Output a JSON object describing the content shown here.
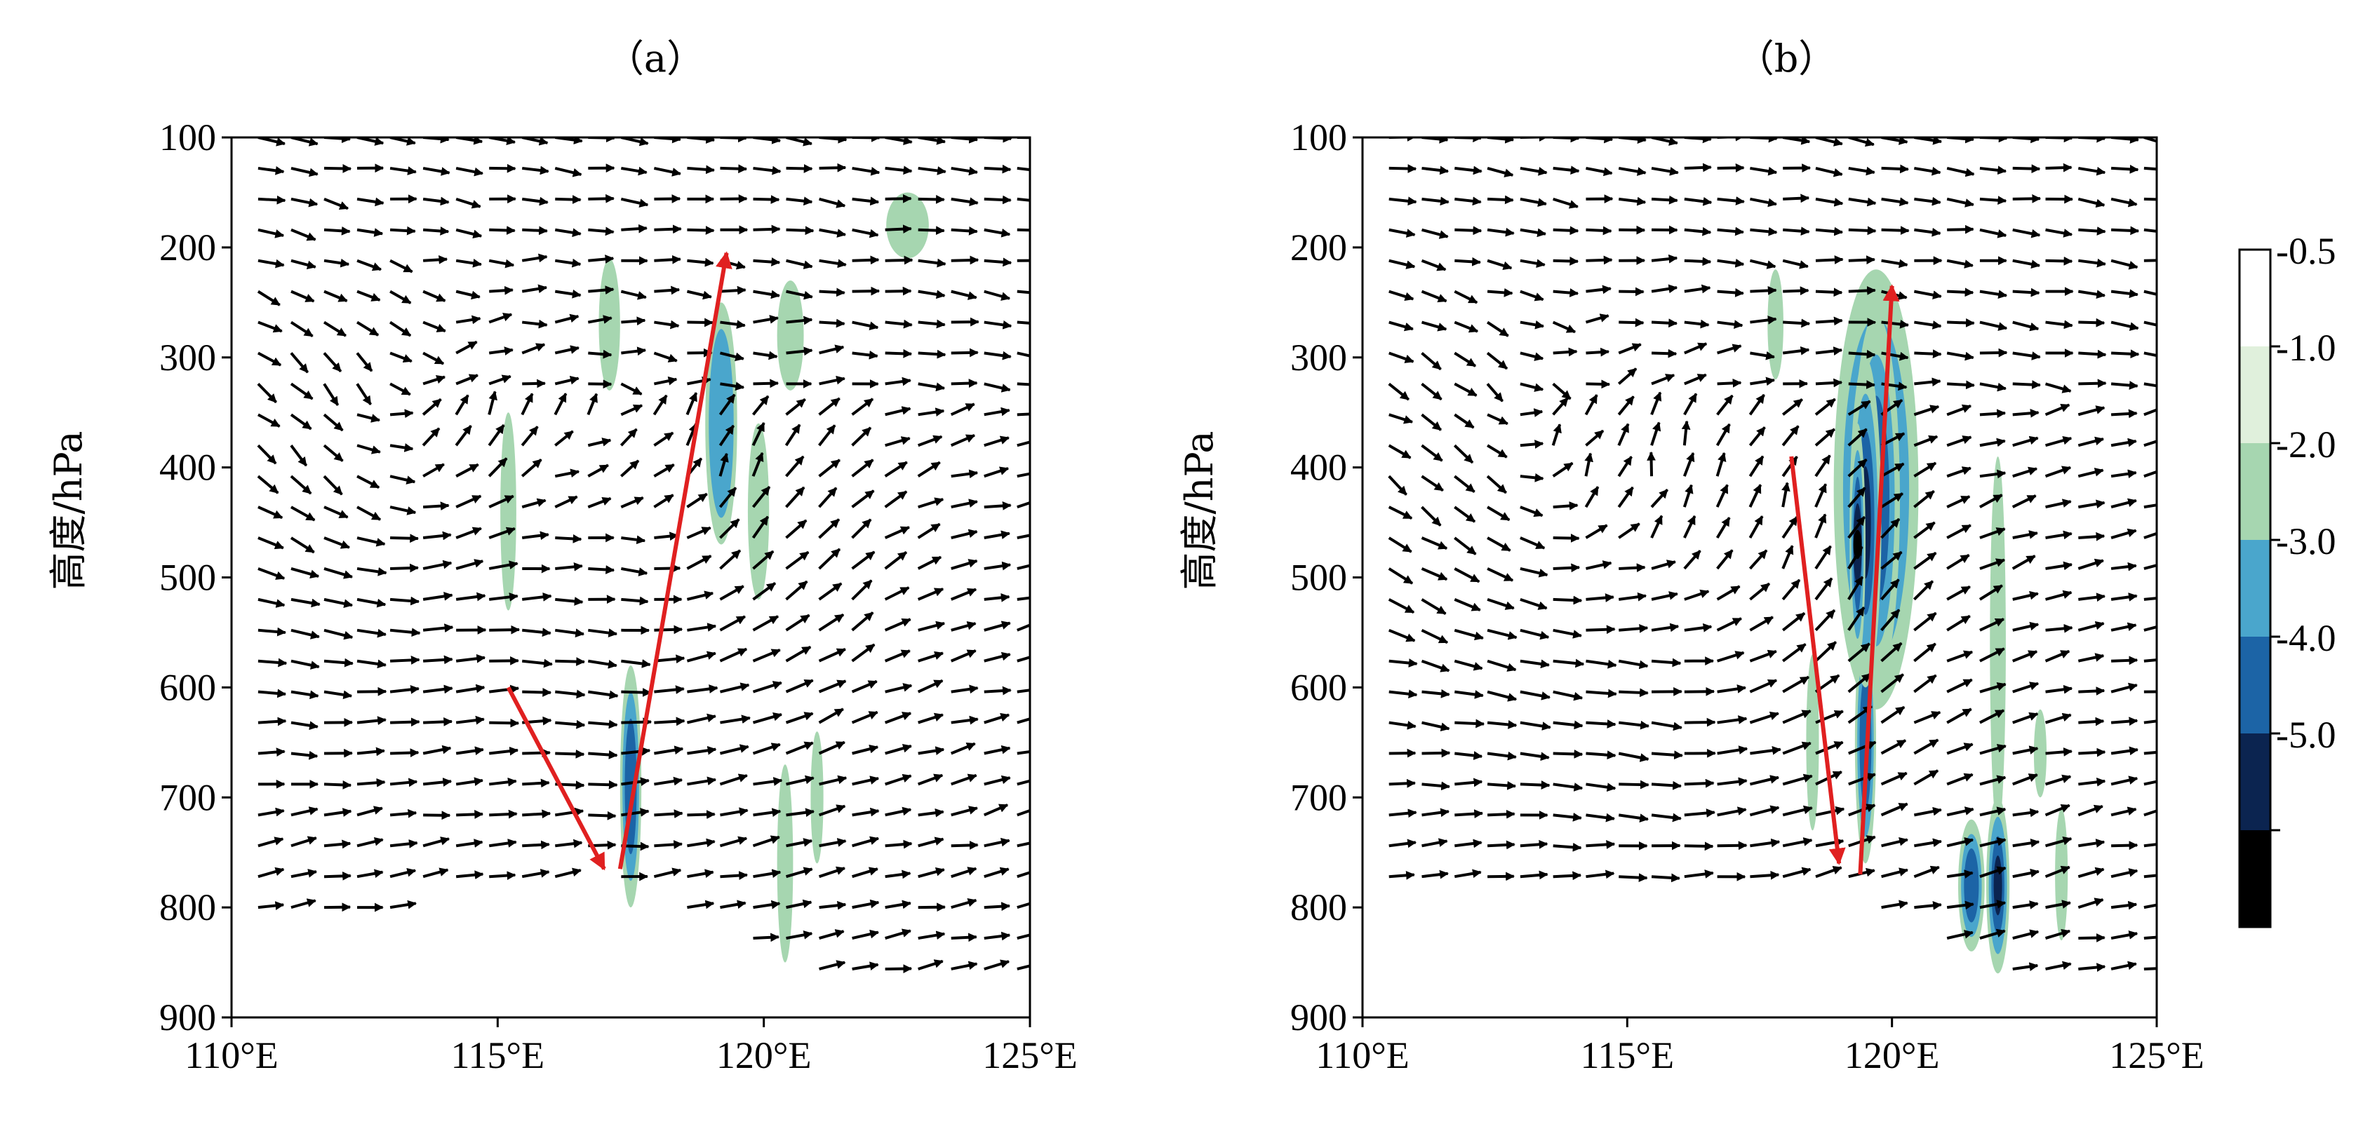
{
  "colors": {
    "level_0_5": "#ffffff",
    "level_1_0": "#e0f0dc",
    "level_2_0": "#a6d6b0",
    "level_3_0": "#4aa6cc",
    "level_4_0": "#1c64a6",
    "level_5_0": "#0b2450",
    "level_min": "#000000",
    "vector": "#000000",
    "highlight_arrow": "#e02020"
  },
  "chart_data": [
    {
      "type": "vector-contour",
      "title": "（a）",
      "ylabel": "高度/hPa",
      "x_ticks": [
        "110°E",
        "115°E",
        "120°E",
        "125°E"
      ],
      "y_ticks": [
        "100",
        "200",
        "300",
        "400",
        "500",
        "600",
        "700",
        "800",
        "900"
      ],
      "xlim": [
        110,
        125
      ],
      "ylim": [
        900,
        100
      ],
      "grid": false,
      "contour_levels": [
        -0.5,
        -1.0,
        -2.0,
        -3.0,
        -4.0,
        -5.0
      ],
      "shaded_areas": [
        {
          "lon": 117.5,
          "p": 690,
          "lon_halfwidth": 0.2,
          "p_halfheight": 110,
          "min_value": -3.0
        },
        {
          "lon": 119.2,
          "p": 360,
          "lon_halfwidth": 0.3,
          "p_halfheight": 110,
          "min_value": -2.0
        },
        {
          "lon": 119.9,
          "p": 440,
          "lon_halfwidth": 0.2,
          "p_halfheight": 80,
          "min_value": -1.0
        },
        {
          "lon": 115.2,
          "p": 440,
          "lon_halfwidth": 0.15,
          "p_halfheight": 90,
          "min_value": -1.0
        },
        {
          "lon": 117.1,
          "p": 270,
          "lon_halfwidth": 0.2,
          "p_halfheight": 60,
          "min_value": -1.0
        },
        {
          "lon": 120.5,
          "p": 280,
          "lon_halfwidth": 0.25,
          "p_halfheight": 50,
          "min_value": -1.0
        },
        {
          "lon": 122.7,
          "p": 180,
          "lon_halfwidth": 0.4,
          "p_halfheight": 30,
          "min_value": -1.0
        },
        {
          "lon": 120.4,
          "p": 760,
          "lon_halfwidth": 0.15,
          "p_halfheight": 90,
          "min_value": -1.0
        },
        {
          "lon": 121.0,
          "p": 700,
          "lon_halfwidth": 0.12,
          "p_halfheight": 60,
          "min_value": -1.0
        }
      ],
      "highlight_arrows": [
        {
          "from": [
            115.2,
            600
          ],
          "to": [
            117.0,
            765
          ]
        },
        {
          "from": [
            117.3,
            765
          ],
          "to": [
            119.3,
            205
          ]
        }
      ],
      "circulation_centers": [
        {
          "lon": 113.2,
          "p": 430
        },
        {
          "lon": 118.3,
          "p": 500
        }
      ],
      "lower_boundary_p": [
        [
          110,
          800
        ],
        [
          113,
          800
        ],
        [
          115,
          780
        ],
        [
          117,
          770
        ],
        [
          118,
          790
        ],
        [
          120,
          840
        ],
        [
          122,
          880
        ],
        [
          125,
          880
        ]
      ]
    },
    {
      "type": "vector-contour",
      "title": "（b）",
      "ylabel": "高度/hPa",
      "x_ticks": [
        "110°E",
        "115°E",
        "120°E",
        "125°E"
      ],
      "y_ticks": [
        "100",
        "200",
        "300",
        "400",
        "500",
        "600",
        "700",
        "800",
        "900"
      ],
      "xlim": [
        110,
        125
      ],
      "ylim": [
        900,
        100
      ],
      "grid": false,
      "contour_levels": [
        -0.5,
        -1.0,
        -2.0,
        -3.0,
        -4.0,
        -5.0
      ],
      "shaded_areas": [
        {
          "lon": 119.7,
          "p": 420,
          "lon_halfwidth": 0.8,
          "p_halfheight": 200,
          "min_value": -2.0
        },
        {
          "lon": 119.7,
          "p": 430,
          "lon_halfwidth": 0.45,
          "p_halfheight": 170,
          "min_value": -3.0
        },
        {
          "lon": 119.5,
          "p": 450,
          "lon_halfwidth": 0.3,
          "p_halfheight": 150,
          "min_value": -4.0
        },
        {
          "lon": 119.35,
          "p": 470,
          "lon_halfwidth": 0.15,
          "p_halfheight": 110,
          "min_value": -5.0
        },
        {
          "lon": 119.5,
          "p": 650,
          "lon_halfwidth": 0.2,
          "p_halfheight": 110,
          "min_value": -3.0
        },
        {
          "lon": 121.5,
          "p": 780,
          "lon_halfwidth": 0.25,
          "p_halfheight": 60,
          "min_value": -3.0
        },
        {
          "lon": 122.0,
          "p": 780,
          "lon_halfwidth": 0.22,
          "p_halfheight": 80,
          "min_value": -4.0
        },
        {
          "lon": 122.0,
          "p": 560,
          "lon_halfwidth": 0.15,
          "p_halfheight": 170,
          "min_value": -1.0
        },
        {
          "lon": 118.5,
          "p": 650,
          "lon_halfwidth": 0.12,
          "p_halfheight": 80,
          "min_value": -1.0
        },
        {
          "lon": 117.8,
          "p": 270,
          "lon_halfwidth": 0.15,
          "p_halfheight": 50,
          "min_value": -1.0
        },
        {
          "lon": 123.2,
          "p": 770,
          "lon_halfwidth": 0.12,
          "p_halfheight": 60,
          "min_value": -1.0
        },
        {
          "lon": 122.8,
          "p": 660,
          "lon_halfwidth": 0.12,
          "p_halfheight": 40,
          "min_value": -1.0
        }
      ],
      "highlight_arrows": [
        {
          "from": [
            118.1,
            390
          ],
          "to": [
            119.0,
            760
          ]
        },
        {
          "from": [
            119.4,
            770
          ],
          "to": [
            120.0,
            235
          ]
        }
      ],
      "circulation_centers": [
        {
          "lon": 113.2,
          "p": 460
        },
        {
          "lon": 117.0,
          "p": 560
        }
      ],
      "lower_boundary_p": [
        [
          110,
          800
        ],
        [
          113,
          790
        ],
        [
          115,
          780
        ],
        [
          117,
          780
        ],
        [
          119,
          790
        ],
        [
          121,
          840
        ],
        [
          123,
          880
        ],
        [
          125,
          880
        ]
      ]
    }
  ],
  "colorbar": {
    "labels": [
      "-0.5",
      "-1.0",
      "-2.0",
      "-3.0",
      "-4.0",
      "-5.0"
    ]
  }
}
